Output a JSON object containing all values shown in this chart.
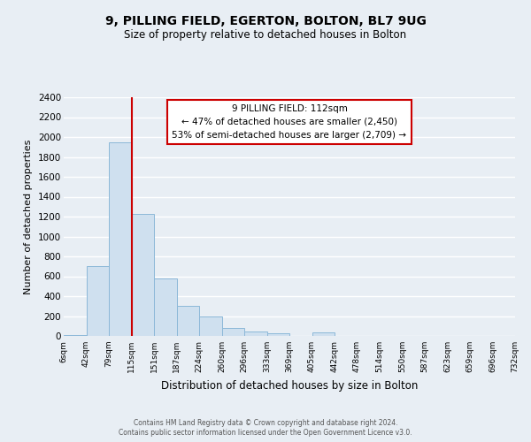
{
  "title": "9, PILLING FIELD, EGERTON, BOLTON, BL7 9UG",
  "subtitle": "Size of property relative to detached houses in Bolton",
  "xlabel": "Distribution of detached houses by size in Bolton",
  "ylabel": "Number of detached properties",
  "bin_labels": [
    "6sqm",
    "42sqm",
    "79sqm",
    "115sqm",
    "151sqm",
    "187sqm",
    "224sqm",
    "260sqm",
    "296sqm",
    "333sqm",
    "369sqm",
    "405sqm",
    "442sqm",
    "478sqm",
    "514sqm",
    "550sqm",
    "587sqm",
    "623sqm",
    "659sqm",
    "696sqm",
    "732sqm"
  ],
  "bar_values": [
    5,
    700,
    1950,
    1230,
    575,
    300,
    200,
    80,
    45,
    25,
    0,
    35,
    0,
    0,
    0,
    0,
    0,
    0,
    0,
    0
  ],
  "bar_color": "#cfe0ef",
  "bar_edge_color": "#8cb8d8",
  "vline_color": "#cc0000",
  "ylim": [
    0,
    2400
  ],
  "yticks": [
    0,
    200,
    400,
    600,
    800,
    1000,
    1200,
    1400,
    1600,
    1800,
    2000,
    2200,
    2400
  ],
  "annotation_title": "9 PILLING FIELD: 112sqm",
  "annotation_line1": "← 47% of detached houses are smaller (2,450)",
  "annotation_line2": "53% of semi-detached houses are larger (2,709) →",
  "annotation_box_color": "#ffffff",
  "annotation_box_edge": "#cc0000",
  "footer1": "Contains HM Land Registry data © Crown copyright and database right 2024.",
  "footer2": "Contains public sector information licensed under the Open Government Licence v3.0.",
  "background_color": "#e8eef4",
  "grid_color": "#ffffff"
}
